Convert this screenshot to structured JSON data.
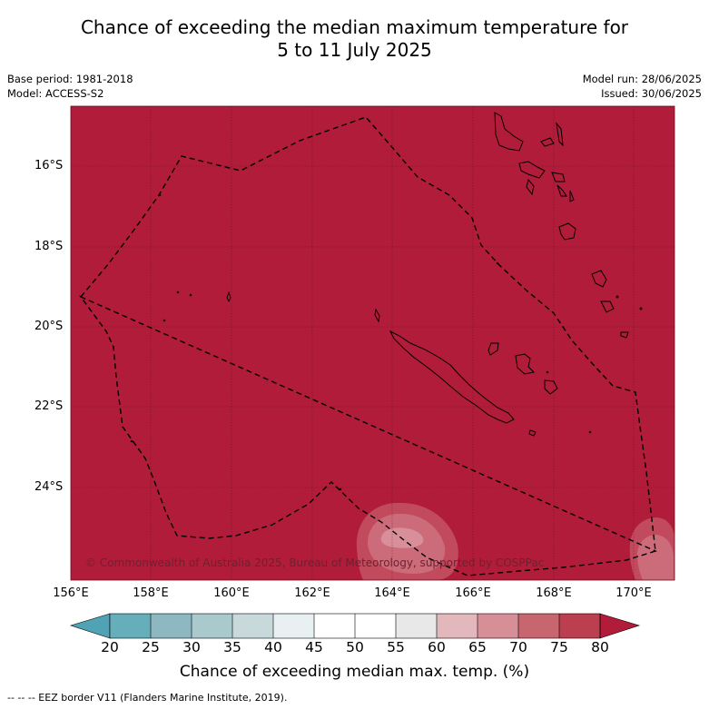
{
  "title": {
    "line1": "Chance of exceeding the median maximum temperature for",
    "line2": "5 to 11 July 2025"
  },
  "meta_left": {
    "base_period": "Base period: 1981-2018",
    "model": "Model: ACCESS-S2"
  },
  "meta_right": {
    "model_run": "Model run: 28/06/2025",
    "issued": "Issued: 30/06/2025"
  },
  "latitude_labels": [
    "16°S",
    "18°S",
    "20°S",
    "22°S",
    "24°S"
  ],
  "longitude_labels": [
    "156°E",
    "158°E",
    "160°E",
    "162°E",
    "164°E",
    "166°E",
    "168°E",
    "170°E"
  ],
  "copyright": "© Commonwealth of Australia 2025, Bureau of Meteorology, supported by COSPPac",
  "colorbar": {
    "title": "Chance of exceeding median max. temp. (%)",
    "ticks": [
      "20",
      "25",
      "30",
      "35",
      "40",
      "45",
      "50",
      "55",
      "60",
      "65",
      "70",
      "75",
      "80"
    ],
    "colors": [
      "#67aebb",
      "#8db8c2",
      "#aac9cd",
      "#c8d9dc",
      "#e9f0f1",
      "#ffffff",
      "#ffffff",
      "#e8e8e8",
      "#e2b8bd",
      "#d68e97",
      "#c86670",
      "#bb3f4e",
      "#b01c39"
    ]
  },
  "map": {
    "dominant_color": "#b01c39",
    "extent": {
      "lon_min": 156,
      "lon_max": 171,
      "lat_min": -25.9,
      "lat_max": -14.4
    },
    "features": [
      "New Caledonia",
      "Vanuatu",
      "Loyalty Islands",
      "EEZ border"
    ]
  },
  "footnote": "-- -- -- EEZ border V11 (Flanders Marine Institute, 2019)."
}
